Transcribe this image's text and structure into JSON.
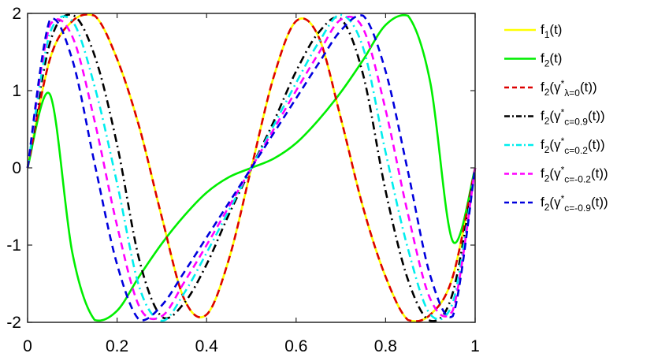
{
  "chart_data": {
    "type": "line",
    "title": "",
    "xlabel": "",
    "ylabel": "",
    "xlim": [
      0,
      1
    ],
    "ylim": [
      -2,
      2
    ],
    "x_ticks": [
      0,
      0.2,
      0.4,
      0.6,
      0.8,
      1
    ],
    "x_tick_labels": [
      "0",
      "0.2",
      "0.4",
      "0.6",
      "0.8",
      "1"
    ],
    "y_ticks": [
      -2,
      -1,
      0,
      1,
      2
    ],
    "y_tick_labels": [
      "-2",
      "-1",
      "0",
      "1",
      "2"
    ],
    "grid": false,
    "legend_position": "outside-right",
    "x": [
      0,
      0.05,
      0.1,
      0.15,
      0.2,
      0.25,
      0.3,
      0.35,
      0.4,
      0.45,
      0.5,
      0.55,
      0.6,
      0.65,
      0.7,
      0.75,
      0.8,
      0.85,
      0.9,
      0.95,
      1
    ],
    "series": [
      {
        "legend": {
          "base": "f",
          "sub1": "1",
          "mid": "(t)",
          "sub2": "",
          "tail": ""
        },
        "color": "#ffff00",
        "dash": "solid",
        "values": [
          0,
          1.41,
          1.9,
          1.97,
          1.41,
          0.52,
          -0.64,
          -1.7,
          -1.9,
          -1.18,
          0,
          1.18,
          1.9,
          1.7,
          0.64,
          -0.52,
          -1.41,
          -1.97,
          -1.9,
          -1.41,
          0
        ]
      },
      {
        "legend": {
          "base": "f",
          "sub1": "2",
          "mid": "(t)",
          "sub2": "",
          "tail": ""
        },
        "color": "#00ee00",
        "dash": "solid",
        "values": [
          0,
          0.95,
          -1.1,
          -1.97,
          -1.85,
          -1.4,
          -0.98,
          -0.62,
          -0.32,
          -0.12,
          0,
          0.12,
          0.32,
          0.62,
          0.98,
          1.4,
          1.85,
          1.97,
          1.1,
          -0.95,
          0
        ]
      },
      {
        "legend": {
          "base": "f",
          "sub1": "2",
          "mid": "(γ",
          "sup": "*",
          "sub2": "λ=0",
          "tail": "(t))"
        },
        "color": "#dd0000",
        "dash": "dashed",
        "values": [
          0,
          1.41,
          1.9,
          1.97,
          1.41,
          0.52,
          -0.64,
          -1.7,
          -1.9,
          -1.18,
          0,
          1.18,
          1.9,
          1.7,
          0.64,
          -0.52,
          -1.41,
          -1.97,
          -1.9,
          -1.41,
          0
        ]
      },
      {
        "legend": {
          "base": "f",
          "sub1": "2",
          "mid": "(γ",
          "sup": "*",
          "sub2": "c=0.9",
          "tail": "(t))"
        },
        "color": "#000000",
        "dash": "dashdot",
        "values": [
          0,
          1.62,
          1.98,
          1.45,
          0.3,
          -1.2,
          -1.93,
          -1.75,
          -1.25,
          -0.6,
          0,
          0.6,
          1.25,
          1.75,
          1.93,
          1.2,
          -0.3,
          -1.45,
          -1.98,
          -1.62,
          0
        ]
      },
      {
        "legend": {
          "base": "f",
          "sub1": "2",
          "mid": "(γ",
          "sup": "*",
          "sub2": "c=0.2",
          "tail": "(t))"
        },
        "color": "#00eeee",
        "dash": "dashdot",
        "values": [
          0,
          1.75,
          1.9,
          1.05,
          -0.2,
          -1.55,
          -1.98,
          -1.62,
          -1.1,
          -0.55,
          0,
          0.55,
          1.1,
          1.62,
          1.98,
          1.55,
          0.2,
          -1.05,
          -1.9,
          -1.75,
          0
        ]
      },
      {
        "legend": {
          "base": "f",
          "sub1": "2",
          "mid": "(γ",
          "sup": "*",
          "sub2": "c=-0.2",
          "tail": "(t))"
        },
        "color": "#ff00ff",
        "dash": "dashed",
        "values": [
          0,
          1.85,
          1.7,
          0.6,
          -0.75,
          -1.8,
          -1.92,
          -1.48,
          -1.0,
          -0.5,
          0,
          0.5,
          1.0,
          1.48,
          1.92,
          1.8,
          0.75,
          -0.6,
          -1.7,
          -1.85,
          0
        ]
      },
      {
        "legend": {
          "base": "f",
          "sub1": "2",
          "mid": "(γ",
          "sup": "*",
          "sub2": "c=-0.9",
          "tail": "(t))"
        },
        "color": "#0000dd",
        "dash": "dashed",
        "values": [
          0,
          1.92,
          1.4,
          0.05,
          -1.25,
          -1.97,
          -1.78,
          -1.35,
          -0.9,
          -0.45,
          0,
          0.45,
          0.9,
          1.35,
          1.78,
          1.97,
          1.25,
          -0.05,
          -1.4,
          -1.92,
          0
        ]
      }
    ]
  }
}
